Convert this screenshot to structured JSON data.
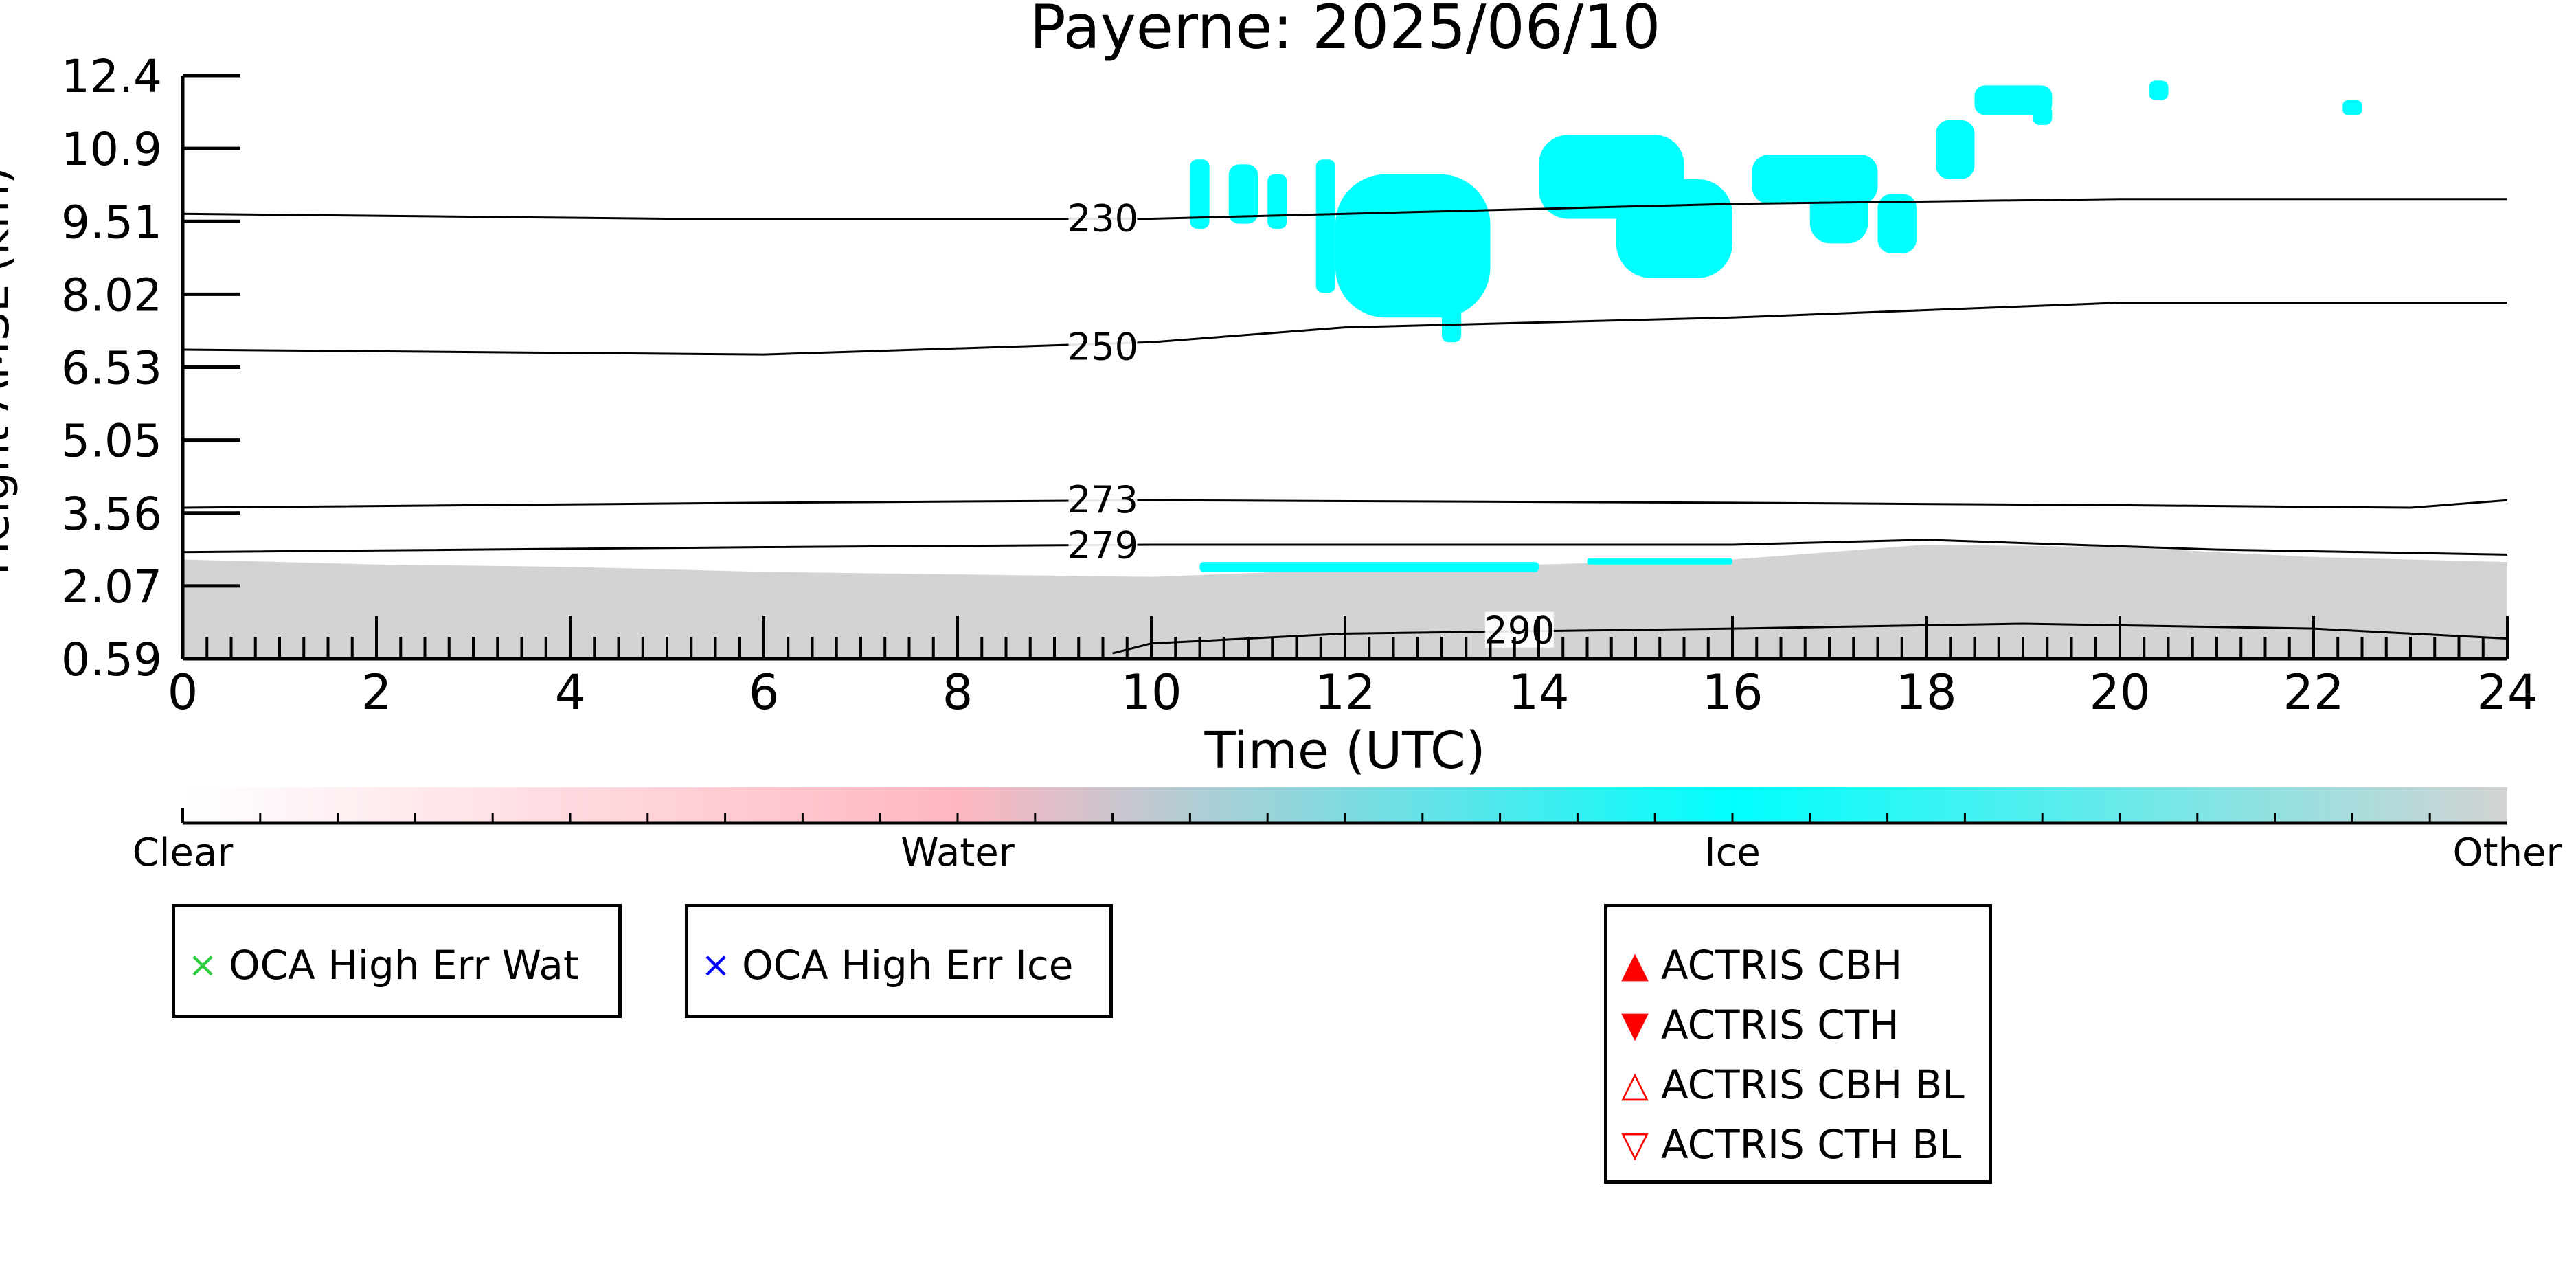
{
  "chart_data": {
    "type": "heatmap",
    "title": "Payerne: 2025/06/10",
    "xlabel": "Time (UTC)",
    "ylabel": "Height AMSL (km)",
    "xlim": [
      0,
      24
    ],
    "ylim": [
      0.59,
      12.4
    ],
    "x_ticks": [
      "0",
      "2",
      "4",
      "6",
      "8",
      "10",
      "12",
      "14",
      "16",
      "18",
      "20",
      "22",
      "24"
    ],
    "y_ticks": [
      "0.59",
      "2.07",
      "3.56",
      "5.05",
      "6.53",
      "8.02",
      "9.51",
      "10.9",
      "12.4"
    ],
    "categories": [
      "Clear",
      "Water",
      "Ice",
      "Other"
    ],
    "category_colors": {
      "Clear": "#ffffff",
      "Water": "#ffb6c1",
      "Ice": "#00ffff",
      "Other": "#d3d3d3"
    },
    "contour_lines": [
      {
        "label": "230",
        "t": [
          0,
          5,
          10,
          14,
          16,
          20,
          24
        ],
        "h": [
          9.6,
          9.5,
          9.5,
          9.7,
          9.8,
          9.9,
          9.9
        ]
      },
      {
        "label": "250",
        "t": [
          0,
          6,
          10,
          12,
          16,
          20,
          24
        ],
        "h": [
          6.85,
          6.75,
          7.0,
          7.3,
          7.5,
          7.8,
          7.8
        ]
      },
      {
        "label": "273",
        "t": [
          0,
          6,
          10,
          16,
          20,
          23,
          24
        ],
        "h": [
          3.65,
          3.75,
          3.8,
          3.75,
          3.7,
          3.65,
          3.8
        ]
      },
      {
        "label": "279",
        "t": [
          0,
          6,
          10,
          16,
          18,
          21,
          24
        ],
        "h": [
          2.75,
          2.85,
          2.9,
          2.9,
          3.0,
          2.8,
          2.7
        ]
      },
      {
        "label": "290",
        "t": [
          9.6,
          10,
          12,
          16,
          19,
          22,
          24
        ],
        "h": [
          0.7,
          0.9,
          1.1,
          1.2,
          1.3,
          1.2,
          1.0
        ]
      }
    ],
    "contour_label_positions": [
      {
        "label": "230",
        "t": 9.5,
        "h": 9.5
      },
      {
        "label": "250",
        "t": 9.5,
        "h": 6.9
      },
      {
        "label": "273",
        "t": 9.5,
        "h": 3.8
      },
      {
        "label": "279",
        "t": 9.5,
        "h": 2.88
      },
      {
        "label": "290",
        "t": 13.8,
        "h": 1.15
      }
    ],
    "other_region_top": {
      "t": [
        0,
        2,
        4,
        6,
        8,
        10,
        12,
        14,
        16,
        18,
        20,
        22,
        24
      ],
      "h": [
        2.6,
        2.5,
        2.45,
        2.35,
        2.3,
        2.25,
        2.4,
        2.5,
        2.6,
        2.9,
        2.85,
        2.65,
        2.55
      ]
    },
    "ice_clouds": [
      {
        "t0": 10.4,
        "t1": 10.6,
        "h0": 9.3,
        "h1": 10.7
      },
      {
        "t0": 10.8,
        "t1": 11.1,
        "h0": 9.4,
        "h1": 10.6
      },
      {
        "t0": 11.2,
        "t1": 11.4,
        "h0": 9.3,
        "h1": 10.4
      },
      {
        "t0": 11.7,
        "t1": 11.9,
        "h0": 8.0,
        "h1": 10.7
      },
      {
        "t0": 11.9,
        "t1": 13.5,
        "h0": 7.5,
        "h1": 10.4
      },
      {
        "t0": 13.0,
        "t1": 13.2,
        "h0": 7.0,
        "h1": 8.5
      },
      {
        "t0": 14.0,
        "t1": 15.5,
        "h0": 9.5,
        "h1": 11.2
      },
      {
        "t0": 14.8,
        "t1": 16.0,
        "h0": 8.3,
        "h1": 10.3
      },
      {
        "t0": 16.2,
        "t1": 17.5,
        "h0": 9.8,
        "h1": 10.8
      },
      {
        "t0": 16.8,
        "t1": 17.4,
        "h0": 9.0,
        "h1": 10.2
      },
      {
        "t0": 17.5,
        "t1": 17.9,
        "h0": 8.8,
        "h1": 10.0
      },
      {
        "t0": 18.1,
        "t1": 18.5,
        "h0": 10.3,
        "h1": 11.5
      },
      {
        "t0": 18.5,
        "t1": 19.3,
        "h0": 11.6,
        "h1": 12.2
      },
      {
        "t0": 19.1,
        "t1": 19.3,
        "h0": 11.4,
        "h1": 11.8
      },
      {
        "t0": 20.3,
        "t1": 20.5,
        "h0": 11.9,
        "h1": 12.3
      },
      {
        "t0": 22.3,
        "t1": 22.5,
        "h0": 11.6,
        "h1": 11.9
      },
      {
        "t0": 10.5,
        "t1": 14.0,
        "h0": 2.35,
        "h1": 2.55
      },
      {
        "t0": 14.5,
        "t1": 16.0,
        "h0": 2.5,
        "h1": 2.62
      }
    ],
    "legend_groups": [
      {
        "entries": [
          {
            "label": "OCA High Err Wat",
            "marker": "×",
            "color": "#2ecc40"
          }
        ]
      },
      {
        "entries": [
          {
            "label": "OCA High Err Ice",
            "marker": "×",
            "color": "#0000ff"
          }
        ]
      },
      {
        "entries": [
          {
            "label": "ACTRIS CBH",
            "marker": "▲",
            "color": "#ff0000"
          },
          {
            "label": "ACTRIS CTH",
            "marker": "▼",
            "color": "#ff0000"
          },
          {
            "label": "ACTRIS CBH BL",
            "marker": "△",
            "color": "#ff0000"
          },
          {
            "label": "ACTRIS CTH BL",
            "marker": "▽",
            "color": "#ff0000"
          }
        ]
      }
    ]
  }
}
